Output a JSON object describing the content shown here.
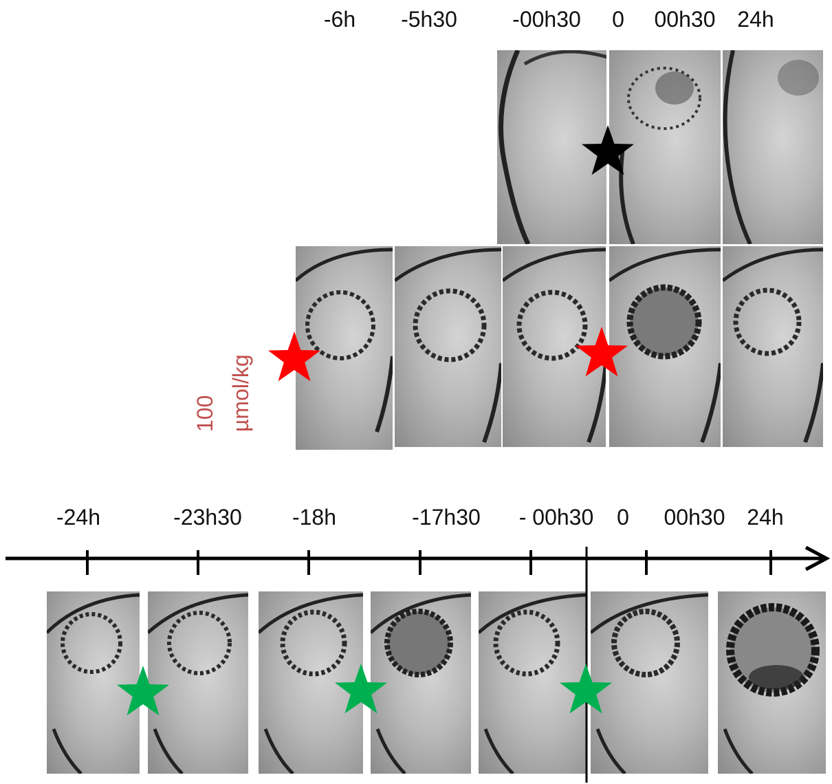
{
  "top_row": {
    "time_labels": [
      "-6h",
      "-5h30",
      "-00h30",
      "0",
      "00h30",
      "24h"
    ]
  },
  "dose_label": {
    "line1": "100",
    "line2": "µmol/kg",
    "color": "#c0504d"
  },
  "bottom_timeline": {
    "time_labels": [
      "-24h",
      "-23h30",
      "-18h",
      "-17h30",
      "- 00h30",
      "0",
      "00h30",
      "24h"
    ]
  },
  "star_colors": {
    "black": "#000000",
    "red": "#ff0000",
    "green": "#00b050"
  }
}
